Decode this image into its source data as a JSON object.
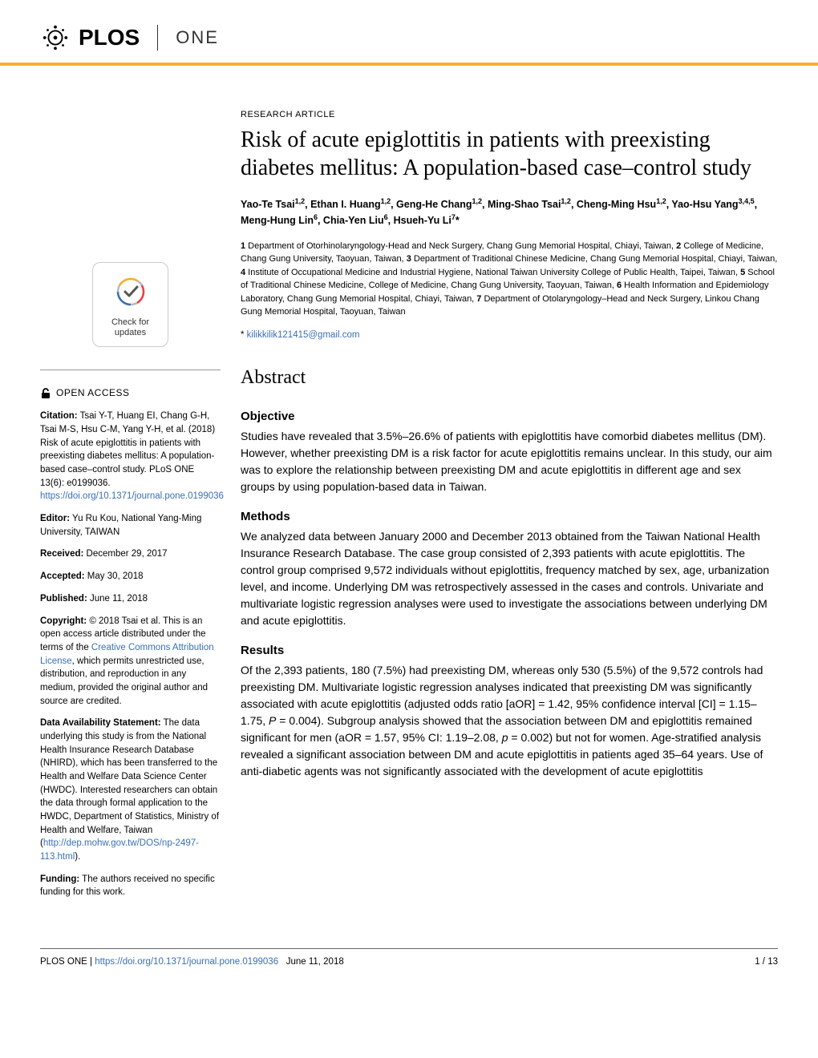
{
  "header": {
    "logo_plos": "PLOS",
    "logo_one": "ONE"
  },
  "article": {
    "type": "RESEARCH ARTICLE",
    "title": "Risk of acute epiglottitis in patients with preexisting diabetes mellitus: A population-based case–control study",
    "authors_html": "Yao-Te Tsai<sup>1,2</sup>, Ethan I. Huang<sup>1,2</sup>, Geng-He Chang<sup>1,2</sup>, Ming-Shao Tsai<sup>1,2</sup>, Cheng-Ming Hsu<sup>1,2</sup>, Yao-Hsu Yang<sup>3,4,5</sup>, Meng-Hung Lin<sup>6</sup>, Chia-Yen Liu<sup>6</sup>, Hsueh-Yu Li<sup>7</sup>*",
    "affiliations": "1 Department of Otorhinolaryngology-Head and Neck Surgery, Chang Gung Memorial Hospital, Chiayi, Taiwan, 2 College of Medicine, Chang Gung University, Taoyuan, Taiwan, 3 Department of Traditional Chinese Medicine, Chang Gung Memorial Hospital, Chiayi, Taiwan, 4 Institute of Occupational Medicine and Industrial Hygiene, National Taiwan University College of Public Health, Taipei, Taiwan, 5 School of Traditional Chinese Medicine, College of Medicine, Chang Gung University, Taoyuan, Taiwan, 6 Health Information and Epidemiology Laboratory, Chang Gung Memorial Hospital, Chiayi, Taiwan, 7 Department of Otolaryngology–Head and Neck Surgery, Linkou Chang Gung Memorial Hospital, Taoyuan, Taiwan",
    "corresponding_email": "kilikkilik121415@gmail.com",
    "abstract_heading": "Abstract"
  },
  "sections": {
    "objective": {
      "heading": "Objective",
      "body": "Studies have revealed that 3.5%–26.6% of patients with epiglottitis have comorbid diabetes mellitus (DM). However, whether preexisting DM is a risk factor for acute epiglottitis remains unclear. In this study, our aim was to explore the relationship between preexisting DM and acute epiglottitis in different age and sex groups by using population-based data in Taiwan."
    },
    "methods": {
      "heading": "Methods",
      "body": "We analyzed data between January 2000 and December 2013 obtained from the Taiwan National Health Insurance Research Database. The case group consisted of 2,393 patients with acute epiglottitis. The control group comprised 9,572 individuals without epiglottitis, frequency matched by sex, age, urbanization level, and income. Underlying DM was retrospectively assessed in the cases and controls. Univariate and multivariate logistic regression analyses were used to investigate the associations between underlying DM and acute epiglottitis."
    },
    "results": {
      "heading": "Results",
      "body_html": "Of the 2,393 patients, 180 (7.5%) had preexisting DM, whereas only 530 (5.5%) of the 9,572 controls had preexisting DM. Multivariate logistic regression analyses indicated that preexisting DM was significantly associated with acute epiglottitis (adjusted odds ratio [aOR] = 1.42, 95% confidence interval [CI] = 1.15–1.75, <span class=\"italic\">P</span> = 0.004). Subgroup analysis showed that the association between DM and epiglottitis remained significant for men (aOR = 1.57, 95% CI: 1.19–2.08, <span class=\"italic\">p</span> = 0.002) but not for women. Age-stratified analysis revealed a significant association between DM and acute epiglottitis in patients aged 35–64 years. Use of anti-diabetic agents was not significantly associated with the development of acute epiglottitis"
    }
  },
  "sidebar": {
    "check_updates": "Check for updates",
    "open_access": "OPEN ACCESS",
    "citation_label": "Citation:",
    "citation_text": " Tsai Y-T, Huang EI, Chang G-H, Tsai M-S, Hsu C-M, Yang Y-H, et al. (2018) Risk of acute epiglottitis in patients with preexisting diabetes mellitus: A population-based case–control study. PLoS ONE 13(6): e0199036. ",
    "citation_link": "https://doi.org/10.1371/journal.pone.0199036",
    "editor_label": "Editor:",
    "editor_text": " Yu Ru Kou, National Yang-Ming University, TAIWAN",
    "received_label": "Received:",
    "received_text": " December 29, 2017",
    "accepted_label": "Accepted:",
    "accepted_text": " May 30, 2018",
    "published_label": "Published:",
    "published_text": " June 11, 2018",
    "copyright_label": "Copyright:",
    "copyright_text_before": " © 2018 Tsai et al. This is an open access article distributed under the terms of the ",
    "copyright_link": "Creative Commons Attribution License",
    "copyright_text_after": ", which permits unrestricted use, distribution, and reproduction in any medium, provided the original author and source are credited.",
    "data_label": "Data Availability Statement:",
    "data_text_before": " The data underlying this study is from the National Health Insurance Research Database (NHIRD), which has been transferred to the Health and Welfare Data Science Center (HWDC). Interested researchers can obtain the data through formal application to the HWDC, Department of Statistics, Ministry of Health and Welfare, Taiwan (",
    "data_link": "http://dep.mohw.gov.tw/DOS/np-2497-113.html",
    "data_text_after": ").",
    "funding_label": "Funding:",
    "funding_text": " The authors received no specific funding for this work."
  },
  "footer": {
    "journal": "PLOS ONE | ",
    "doi_link": "https://doi.org/10.1371/journal.pone.0199036",
    "date": "June 11, 2018",
    "page": "1 / 13"
  },
  "colors": {
    "accent": "#f8af2d",
    "link": "#3a6fb7",
    "text": "#000000"
  }
}
